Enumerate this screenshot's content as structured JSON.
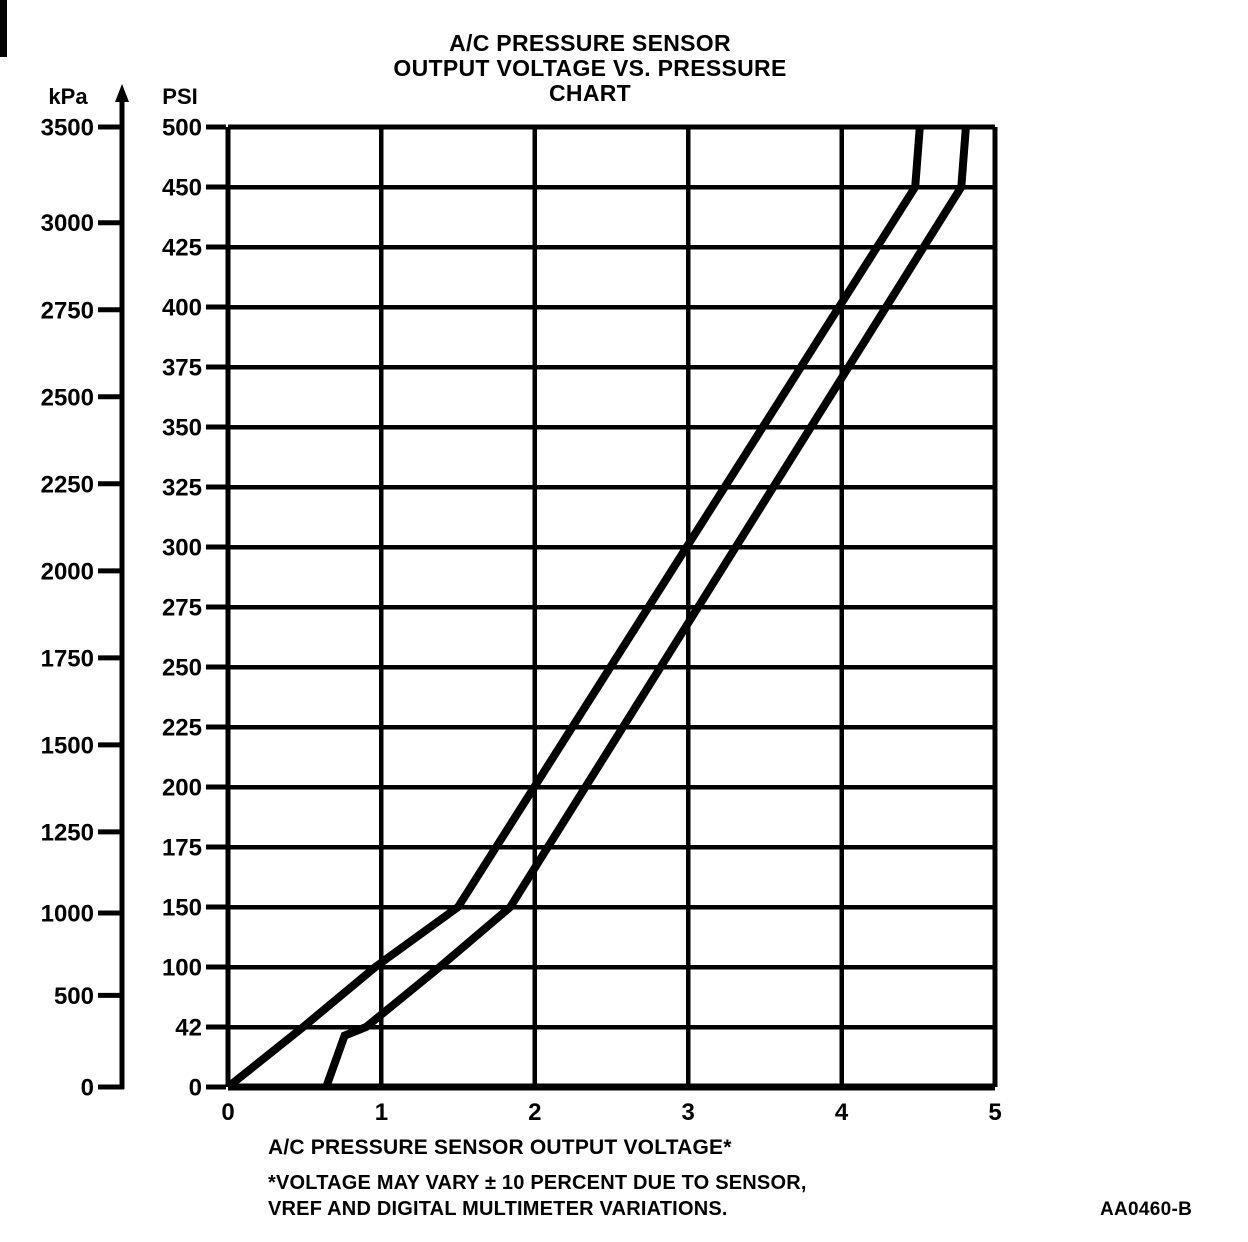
{
  "title": {
    "lines": [
      "A/C PRESSURE SENSOR",
      "OUTPUT VOLTAGE VS. PRESSURE",
      "CHART"
    ]
  },
  "figure_code": "AA0460-B",
  "footnote": {
    "line1": "*VOLTAGE MAY VARY ± 10 PERCENT DUE TO SENSOR,",
    "line2": "VREF AND DIGITAL MULTIMETER VARIATIONS."
  },
  "chart_data": {
    "type": "line",
    "title": "A/C PRESSURE SENSOR OUTPUT VOLTAGE VS. PRESSURE CHART",
    "xlabel": "A/C PRESSURE SENSOR OUTPUT VOLTAGE*",
    "xlim": [
      0,
      5
    ],
    "x_ticks": [
      0,
      1,
      2,
      3,
      4,
      5
    ],
    "grid": true,
    "line_color": "#000000",
    "background": "#ffffff",
    "psi_axis": {
      "label": "PSI",
      "tick_values": [
        500,
        450,
        425,
        400,
        375,
        350,
        325,
        300,
        275,
        250,
        225,
        200,
        175,
        150,
        100,
        42,
        0
      ],
      "spacing": "uniform-gridlines"
    },
    "kpa_axis": {
      "label": "kPa",
      "tick_values": [
        3500,
        3000,
        2750,
        2500,
        2250,
        2000,
        1750,
        1500,
        1250,
        1000,
        500,
        0
      ],
      "kpa_per_psi": 6.8948
    },
    "series": [
      {
        "name": "upper tolerance line",
        "points_v_psi": [
          [
            0,
            0
          ],
          [
            0.49,
            42
          ],
          [
            0.96,
            100
          ],
          [
            1.5,
            150
          ],
          [
            4.48,
            450
          ],
          [
            4.51,
            500
          ]
        ]
      },
      {
        "name": "lower tolerance line",
        "points_v_psi": [
          [
            0.64,
            0
          ],
          [
            0.76,
            36
          ],
          [
            0.9,
            42
          ],
          [
            1.38,
            100
          ],
          [
            1.84,
            150
          ],
          [
            4.78,
            450
          ],
          [
            4.81,
            500
          ]
        ]
      }
    ]
  }
}
